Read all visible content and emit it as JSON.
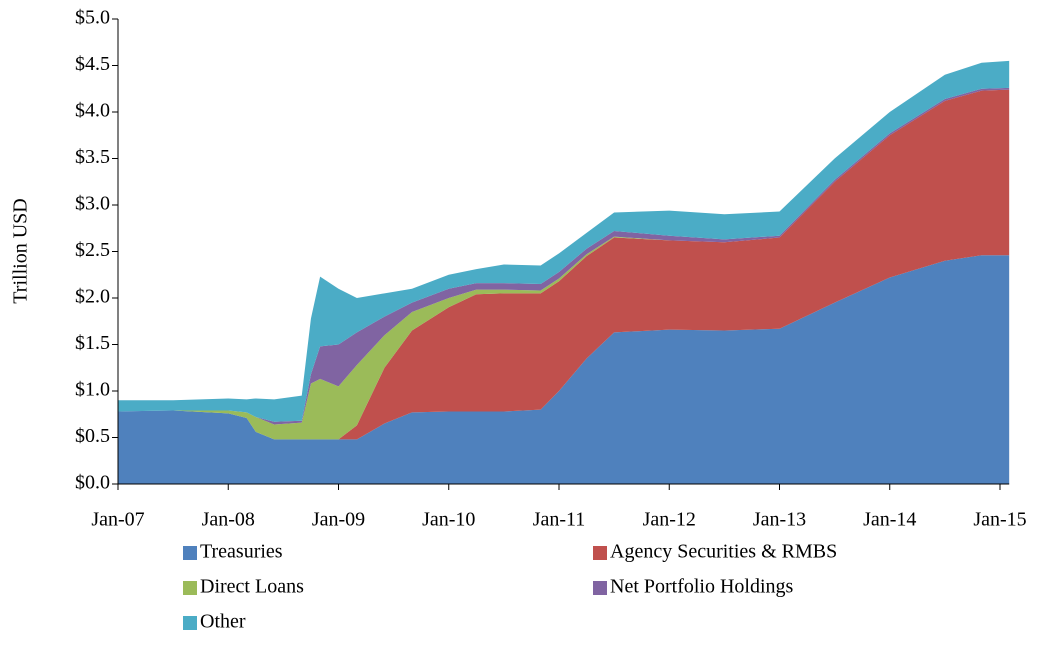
{
  "chart_data": {
    "type": "stacked-area",
    "y_label": "Trillion USD",
    "x": [
      "Jan-07",
      "Jul-07",
      "Jan-08",
      "Mar-08",
      "Apr-08",
      "Jun-08",
      "Sep-08",
      "Oct-08",
      "Nov-08",
      "Jan-09",
      "Mar-09",
      "Jun-09",
      "Sep-09",
      "Jan-10",
      "Apr-10",
      "Jul-10",
      "Nov-10",
      "Jan-11",
      "Apr-11",
      "Jul-11",
      "Jan-12",
      "Jul-12",
      "Jan-13",
      "Jul-13",
      "Jan-14",
      "Jul-14",
      "Nov-14",
      "Feb-15"
    ],
    "xticks": [
      "Jan-07",
      "Jan-08",
      "Jan-09",
      "Jan-10",
      "Jan-11",
      "Jan-12",
      "Jan-13",
      "Jan-14",
      "Jan-15"
    ],
    "ylim": [
      0,
      5
    ],
    "yticks": [
      {
        "value": 0,
        "label": "$0.0"
      },
      {
        "value": 0.5,
        "label": "$0.5"
      },
      {
        "value": 1,
        "label": "$1.0"
      },
      {
        "value": 1.5,
        "label": "$1.5"
      },
      {
        "value": 2,
        "label": "$2.0"
      },
      {
        "value": 2.5,
        "label": "$2.5"
      },
      {
        "value": 3,
        "label": "$3.0"
      },
      {
        "value": 3.5,
        "label": "$3.5"
      },
      {
        "value": 4,
        "label": "$4.0"
      },
      {
        "value": 4.5,
        "label": "$4.5"
      },
      {
        "value": 5,
        "label": "$5.0"
      }
    ],
    "series": [
      {
        "name": "Treasuries",
        "color": "#4f81bd",
        "values": [
          0.78,
          0.79,
          0.76,
          0.71,
          0.56,
          0.48,
          0.48,
          0.48,
          0.48,
          0.48,
          0.48,
          0.65,
          0.77,
          0.78,
          0.78,
          0.78,
          0.8,
          1.0,
          1.35,
          1.63,
          1.66,
          1.65,
          1.67,
          1.95,
          2.22,
          2.4,
          2.46,
          2.46
        ]
      },
      {
        "name": "Agency Securities & RMBS",
        "color": "#c0504d",
        "values": [
          0,
          0,
          0,
          0,
          0,
          0,
          0,
          0,
          0,
          0,
          0.15,
          0.6,
          0.88,
          1.12,
          1.26,
          1.27,
          1.25,
          1.18,
          1.1,
          1.02,
          0.96,
          0.95,
          0.98,
          1.3,
          1.53,
          1.72,
          1.77,
          1.78
        ]
      },
      {
        "name": "Direct Loans",
        "color": "#9bbb59",
        "values": [
          0,
          0,
          0.03,
          0.06,
          0.16,
          0.16,
          0.18,
          0.6,
          0.65,
          0.57,
          0.65,
          0.35,
          0.2,
          0.1,
          0.05,
          0.04,
          0.03,
          0.03,
          0.02,
          0.01,
          0,
          0,
          0,
          0,
          0,
          0,
          0,
          0
        ]
      },
      {
        "name": "Net Portfolio Holdings",
        "color": "#8064a2",
        "values": [
          0,
          0,
          0,
          0,
          0,
          0.03,
          0.02,
          0.1,
          0.35,
          0.45,
          0.35,
          0.2,
          0.1,
          0.1,
          0.07,
          0.07,
          0.07,
          0.07,
          0.06,
          0.06,
          0.05,
          0.03,
          0.02,
          0.02,
          0.02,
          0.02,
          0.02,
          0.02
        ]
      },
      {
        "name": "Other",
        "color": "#4bacc6",
        "values": [
          0.12,
          0.11,
          0.13,
          0.14,
          0.2,
          0.24,
          0.27,
          0.6,
          0.75,
          0.6,
          0.37,
          0.25,
          0.15,
          0.15,
          0.15,
          0.2,
          0.2,
          0.2,
          0.17,
          0.2,
          0.27,
          0.27,
          0.26,
          0.23,
          0.23,
          0.26,
          0.28,
          0.29
        ]
      }
    ]
  }
}
